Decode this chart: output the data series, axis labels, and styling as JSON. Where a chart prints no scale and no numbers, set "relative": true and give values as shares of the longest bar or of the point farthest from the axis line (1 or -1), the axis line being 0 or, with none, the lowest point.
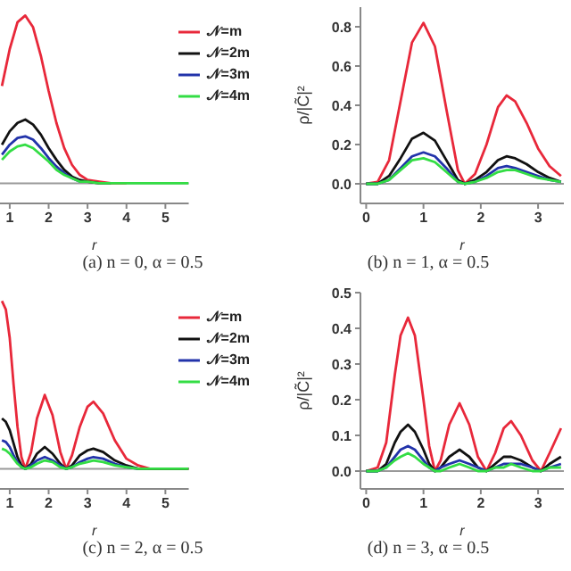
{
  "chart_data": [
    {
      "type": "line",
      "relative": true,
      "tick_labels": "x",
      "xlabel": "r",
      "annotations": [
        "(a) n = 0, α = 0.5"
      ],
      "legend": "top right",
      "xlim": [
        0.75,
        5.6
      ],
      "xticks": [
        1,
        2,
        3,
        4,
        5
      ],
      "ref_lines": [
        {
          "axis": "y",
          "value": 0,
          "color": "#999999"
        }
      ],
      "x": [
        0.8,
        1.0,
        1.2,
        1.4,
        1.6,
        1.8,
        2.0,
        2.2,
        2.4,
        2.6,
        2.8,
        3.0,
        3.3,
        3.6,
        4.0,
        5.0,
        5.6
      ],
      "series": [
        {
          "name": "𝒩=m",
          "color": "#e8283a",
          "values": [
            0.58,
            0.8,
            0.96,
            1,
            0.93,
            0.76,
            0.55,
            0.36,
            0.21,
            0.11,
            0.05,
            0.02,
            0.01,
            0,
            0,
            null,
            null
          ]
        },
        {
          "name": "𝒩=2m",
          "color": "#111111",
          "values": [
            0.23,
            0.31,
            0.36,
            0.38,
            0.35,
            0.29,
            0.21,
            0.14,
            0.08,
            0.04,
            0.02,
            0.01,
            0,
            0,
            null,
            null,
            null
          ]
        },
        {
          "name": "𝒩=3m",
          "color": "#2233aa",
          "values": [
            0.17,
            0.23,
            0.27,
            0.28,
            0.26,
            0.21,
            0.15,
            0.1,
            0.06,
            0.03,
            0.01,
            null,
            null,
            null,
            null,
            null,
            null
          ]
        },
        {
          "name": "𝒩=4m",
          "color": "#33dd44",
          "values": [
            0.14,
            0.19,
            0.22,
            0.23,
            0.21,
            0.17,
            0.13,
            0.08,
            0.05,
            0.03,
            0.01,
            0.01,
            0,
            0,
            0,
            0,
            0
          ]
        }
      ]
    },
    {
      "type": "line",
      "xlabel": "r",
      "ylabel": "ρ/|C̃|²",
      "annotations": [
        "(b) n = 1, α = 0.5"
      ],
      "xlim": [
        -0.1,
        3.45
      ],
      "xticks": [
        0,
        1,
        2,
        3
      ],
      "ylim": [
        -0.1,
        0.9
      ],
      "yticks": [
        {
          "value": 0,
          "label": "0.0"
        },
        {
          "value": 0.2,
          "label": "0.2"
        },
        {
          "value": 0.4,
          "label": "0.4"
        },
        {
          "value": 0.6,
          "label": "0.6"
        },
        {
          "value": 0.8,
          "label": "0.8"
        }
      ],
      "ref_lines": [
        {
          "axis": "y",
          "value": 0,
          "color": "#999999"
        }
      ],
      "x": [
        0,
        0.2,
        0.4,
        0.6,
        0.8,
        1.0,
        1.2,
        1.4,
        1.6,
        1.72,
        1.9,
        2.1,
        2.3,
        2.45,
        2.6,
        2.8,
        3.0,
        3.2,
        3.4
      ],
      "series": [
        {
          "color": "#e8283a",
          "values": [
            0,
            0.01,
            0.12,
            0.42,
            0.72,
            0.82,
            0.7,
            0.38,
            0.07,
            0,
            0.05,
            0.2,
            0.39,
            0.45,
            0.42,
            0.31,
            0.18,
            0.09,
            0.04
          ]
        },
        {
          "color": "#111111",
          "values": [
            0,
            0,
            0.04,
            0.13,
            0.23,
            0.26,
            0.22,
            0.12,
            0.02,
            0,
            0.02,
            0.06,
            0.12,
            0.14,
            0.13,
            0.1,
            0.06,
            0.03,
            0.01
          ]
        },
        {
          "color": "#2233aa",
          "values": [
            0,
            0,
            0.02,
            0.08,
            0.14,
            0.16,
            0.14,
            0.08,
            0.01,
            0,
            0.01,
            0.04,
            0.08,
            0.09,
            0.08,
            0.06,
            0.04,
            0.02,
            0.01
          ]
        },
        {
          "color": "#33dd44",
          "values": [
            0,
            0,
            0.02,
            0.07,
            0.12,
            0.13,
            0.11,
            0.06,
            0.01,
            0,
            0.01,
            0.03,
            0.06,
            0.07,
            0.07,
            0.05,
            0.03,
            0.02,
            0.01
          ]
        }
      ]
    },
    {
      "type": "line",
      "relative": true,
      "tick_labels": "x",
      "xlabel": "r",
      "annotations": [
        "(c) n = 2, α = 0.5"
      ],
      "legend": "top right",
      "xlim": [
        0.75,
        5.6
      ],
      "xticks": [
        1,
        2,
        3,
        4,
        5
      ],
      "ref_lines": [
        {
          "axis": "y",
          "value": 0,
          "color": "#999999"
        }
      ],
      "x": [
        0.8,
        0.9,
        1.0,
        1.1,
        1.2,
        1.3,
        1.4,
        1.55,
        1.7,
        1.9,
        2.1,
        2.3,
        2.45,
        2.6,
        2.8,
        3.0,
        3.15,
        3.4,
        3.7,
        4.0,
        4.3,
        4.6,
        5.0,
        5.6
      ],
      "series": [
        {
          "name": "𝒩=m",
          "color": "#e8283a",
          "values": [
            1,
            0.95,
            0.78,
            0.5,
            0.25,
            0.07,
            0,
            0.1,
            0.3,
            0.44,
            0.32,
            0.1,
            0,
            0.08,
            0.25,
            0.37,
            0.4,
            0.33,
            0.17,
            0.06,
            0.02,
            0,
            0,
            0
          ]
        },
        {
          "name": "𝒩=2m",
          "color": "#111111",
          "values": [
            0.3,
            0.28,
            0.23,
            0.15,
            0.07,
            0.02,
            0,
            0.03,
            0.09,
            0.13,
            0.09,
            0.03,
            0,
            0.02,
            0.08,
            0.11,
            0.12,
            0.1,
            0.05,
            0.02,
            0,
            0,
            0,
            0
          ]
        },
        {
          "name": "𝒩=3m",
          "color": "#2233aa",
          "values": [
            0.17,
            0.16,
            0.13,
            0.08,
            0.04,
            0.01,
            0,
            0.02,
            0.05,
            0.07,
            0.05,
            0.02,
            0,
            0.01,
            0.04,
            0.06,
            0.07,
            0.06,
            0.03,
            0.01,
            0,
            null,
            null,
            null
          ]
        },
        {
          "name": "𝒩=4m",
          "color": "#33dd44",
          "values": [
            0.12,
            0.11,
            0.09,
            0.06,
            0.03,
            0.01,
            0,
            0.01,
            0.03,
            0.05,
            0.04,
            0.01,
            0,
            0.01,
            0.03,
            0.04,
            0.05,
            0.04,
            0.02,
            0.01,
            0,
            0,
            0,
            0
          ]
        }
      ]
    },
    {
      "type": "line",
      "xlabel": "r",
      "ylabel": "ρ/|C̃|²",
      "annotations": [
        "(d) n = 3, α = 0.5"
      ],
      "xlim": [
        -0.1,
        3.45
      ],
      "xticks": [
        0,
        1,
        2,
        3
      ],
      "ylim": [
        -0.05,
        0.5
      ],
      "yticks": [
        {
          "value": 0,
          "label": "0.0"
        },
        {
          "value": 0.1,
          "label": "0.1"
        },
        {
          "value": 0.2,
          "label": "0.2"
        },
        {
          "value": 0.3,
          "label": "0.3"
        },
        {
          "value": 0.4,
          "label": "0.4"
        },
        {
          "value": 0.5,
          "label": "0.5"
        }
      ],
      "ref_lines": [
        {
          "axis": "y",
          "value": 0,
          "color": "#999999"
        }
      ],
      "x": [
        0,
        0.2,
        0.35,
        0.5,
        0.6,
        0.73,
        0.85,
        1.0,
        1.1,
        1.2,
        1.3,
        1.45,
        1.63,
        1.8,
        1.95,
        2.1,
        2.25,
        2.4,
        2.53,
        2.7,
        2.9,
        3.05,
        3.2,
        3.4
      ],
      "series": [
        {
          "color": "#e8283a",
          "values": [
            0,
            0.01,
            0.08,
            0.27,
            0.38,
            0.43,
            0.38,
            0.2,
            0.07,
            0,
            0.03,
            0.13,
            0.19,
            0.13,
            0.04,
            0,
            0.05,
            0.12,
            0.14,
            0.1,
            0.03,
            0,
            0.05,
            0.12
          ]
        },
        {
          "color": "#111111",
          "values": [
            0,
            0,
            0.02,
            0.08,
            0.11,
            0.13,
            0.11,
            0.06,
            0.02,
            0,
            0.01,
            0.04,
            0.06,
            0.04,
            0.01,
            0,
            0.02,
            0.04,
            0.04,
            0.03,
            0.01,
            0,
            0.02,
            0.04
          ]
        },
        {
          "color": "#2233aa",
          "values": [
            0,
            0,
            0.01,
            0.04,
            0.06,
            0.07,
            0.06,
            0.03,
            0.01,
            0,
            0.01,
            0.02,
            0.03,
            0.02,
            0.01,
            0,
            0.01,
            0.02,
            0.02,
            0.02,
            0.01,
            0,
            0.01,
            0.02
          ]
        },
        {
          "color": "#33dd44",
          "values": [
            0,
            0,
            0.01,
            0.03,
            0.04,
            0.05,
            0.04,
            0.02,
            0.01,
            0,
            0,
            0.01,
            0.02,
            0.01,
            0,
            0,
            0.01,
            0.01,
            0.02,
            0.01,
            0,
            0,
            0.01,
            0.01
          ]
        }
      ]
    }
  ]
}
